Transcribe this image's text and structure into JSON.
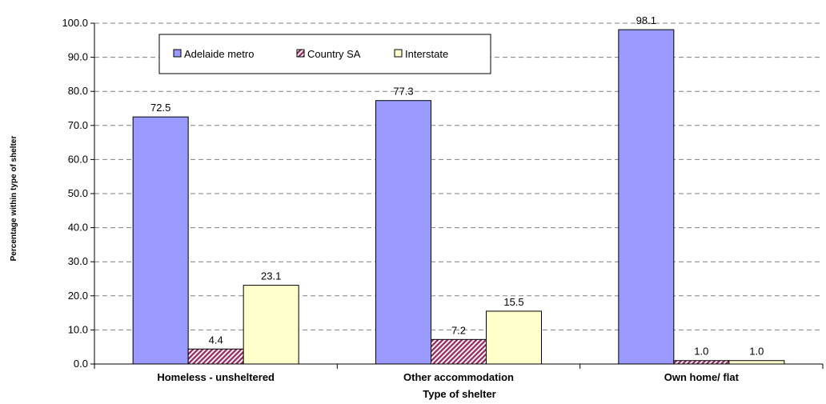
{
  "chart_data": {
    "type": "bar",
    "categories": [
      "Homeless - unsheltered",
      "Other accommodation",
      "Own home/ flat"
    ],
    "series": [
      {
        "name": "Adelaide metro",
        "values": [
          72.5,
          77.3,
          98.1
        ],
        "labels": [
          "72.5",
          "77.3",
          "98.1"
        ],
        "color": "#9999ff",
        "pattern": "solid"
      },
      {
        "name": "Country SA",
        "values": [
          4.4,
          7.2,
          1.0
        ],
        "labels": [
          "4.4",
          "7.2",
          "1.0"
        ],
        "color": "#993366",
        "pattern": "diagonal-hatch"
      },
      {
        "name": "Interstate",
        "values": [
          23.1,
          15.5,
          1.0
        ],
        "labels": [
          "23.1",
          "15.5",
          "1.0"
        ],
        "color": "#ffffcc",
        "pattern": "solid"
      }
    ],
    "xlabel": "Type of shelter",
    "ylabel": "Percentage within type of shelter",
    "ylim": [
      0,
      100
    ],
    "yticks": [
      "0.0",
      "10.0",
      "20.0",
      "30.0",
      "40.0",
      "50.0",
      "60.0",
      "70.0",
      "80.0",
      "90.0",
      "100.0"
    ],
    "grid": true,
    "legend": {
      "position": "top-left"
    }
  }
}
